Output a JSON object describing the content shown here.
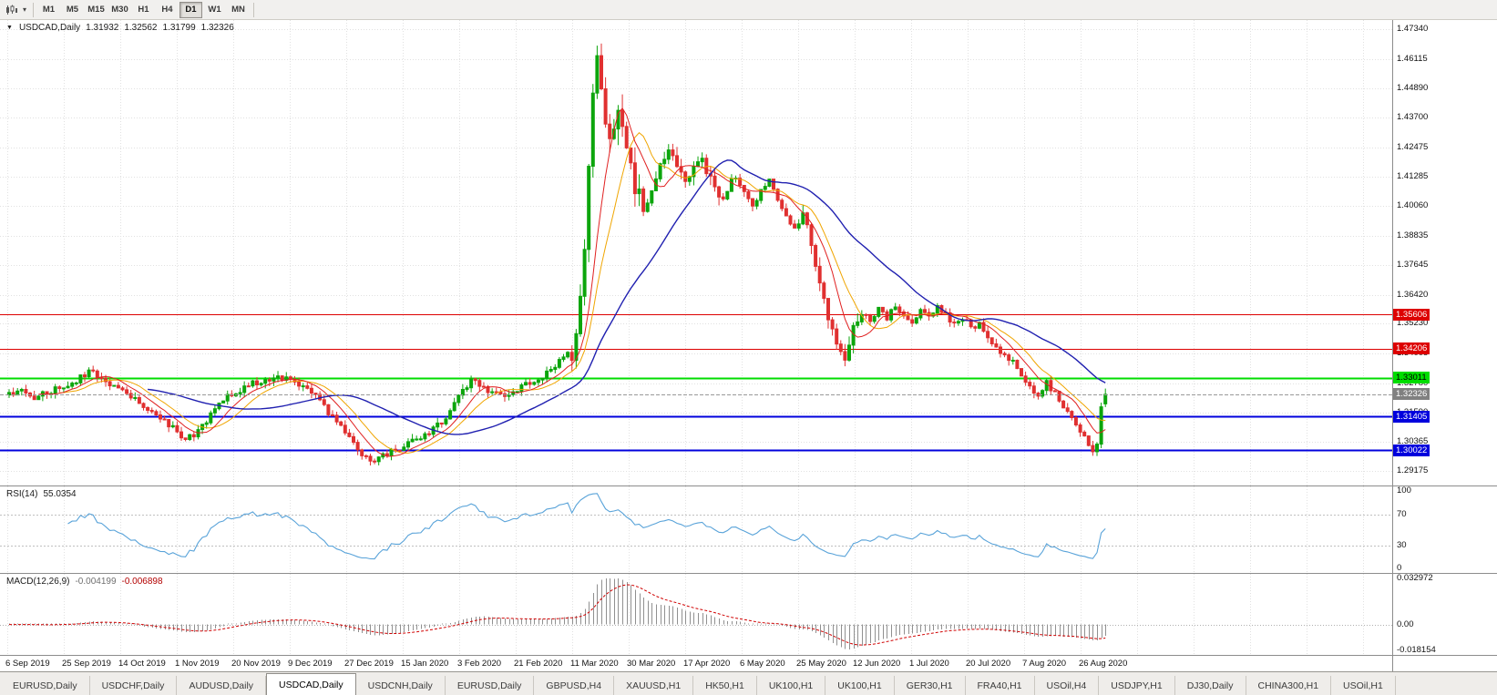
{
  "icons": {
    "collapse_triangle": "▼",
    "dropdown_caret": "▾"
  },
  "toolbar": {
    "timeframes": [
      "M1",
      "M5",
      "M15",
      "M30",
      "H1",
      "H4",
      "D1",
      "W1",
      "MN"
    ],
    "active_timeframe": "D1"
  },
  "chart": {
    "title": "USDCAD,Daily",
    "open": "1.31932",
    "high": "1.32562",
    "low": "1.31799",
    "close": "1.32326",
    "price_scale": [
      "1.47340",
      "1.46115",
      "1.44890",
      "1.43700",
      "1.42475",
      "1.41285",
      "1.40060",
      "1.38835",
      "1.37645",
      "1.36420",
      "1.35230",
      "1.34005",
      "1.32780",
      "1.31590",
      "1.30365",
      "1.29175"
    ],
    "price_max": 1.4734,
    "price_min": 1.29175,
    "current_price": {
      "value": 1.32326,
      "label": "1.32326",
      "bg": "#808080",
      "fg": "#ffffff"
    },
    "levels": [
      {
        "label": "1.35606",
        "value": 1.35606,
        "color": "#dd0000",
        "fg": "#ffffff",
        "thickness": 1
      },
      {
        "label": "1.34206",
        "value": 1.34206,
        "color": "#dd0000",
        "fg": "#ffffff",
        "thickness": 1
      },
      {
        "label": "1.33011",
        "value": 1.33011,
        "color": "#00dd00",
        "fg": "#000000",
        "thickness": 2
      },
      {
        "label": "1.31405",
        "value": 1.31405,
        "color": "#0000dd",
        "fg": "#ffffff",
        "thickness": 2
      },
      {
        "label": "1.30022",
        "value": 1.30022,
        "color": "#0000dd",
        "fg": "#ffffff",
        "thickness": 2
      }
    ],
    "colors": {
      "bull": "#0ca50c",
      "bear": "#e03030",
      "ma_fast": "#e02020",
      "ma_mid": "#f0a500",
      "ma_slow": "#2020b0",
      "grid": "#e1e1e1",
      "current_line": "#999999"
    }
  },
  "rsi": {
    "label": "RSI(14)",
    "value": "55.0354",
    "scale_labels": [
      "100",
      "70",
      "30",
      "0"
    ],
    "levels": [
      70,
      30
    ],
    "color": "#59a3d9"
  },
  "macd": {
    "label": "MACD(12,26,9)",
    "value_main": "-0.004199",
    "value_signal": "-0.006898",
    "scale_labels": [
      "0.032972",
      "0.00",
      "-0.018154"
    ],
    "scale_values": [
      0.032972,
      0,
      -0.018154
    ],
    "scale_max": 0.032972,
    "scale_min": -0.018154,
    "histogram_color": "#909090",
    "signal_color": "#d00000"
  },
  "date_axis": [
    "6 Sep 2019",
    "25 Sep 2019",
    "14 Oct 2019",
    "1 Nov 2019",
    "20 Nov 2019",
    "9 Dec 2019",
    "27 Dec 2019",
    "15 Jan 2020",
    "3 Feb 2020",
    "21 Feb 2020",
    "11 Mar 2020",
    "30 Mar 2020",
    "17 Apr 2020",
    "6 May 2020",
    "25 May 2020",
    "12 Jun 2020",
    "1 Jul 2020",
    "20 Jul 2020",
    "7 Aug 2020",
    "26 Aug 2020"
  ],
  "tabs": {
    "items": [
      "EURUSD,Daily",
      "USDCHF,Daily",
      "AUDUSD,Daily",
      "USDCAD,Daily",
      "USDCNH,Daily",
      "EURUSD,Daily",
      "GBPUSD,H4",
      "XAUUSD,H1",
      "HK50,H1",
      "UK100,H1",
      "UK100,H1",
      "GER30,H1",
      "FRA40,H1",
      "USOil,H4",
      "USDJPY,H1",
      "DJ30,Daily",
      "CHINA300,H1",
      "USOil,H1"
    ],
    "active_index": 3
  },
  "chart_data": {
    "type": "candlestick",
    "symbol": "USDCAD",
    "period": "Daily",
    "x_range": [
      "6 Sep 2019",
      "8 Sep 2020"
    ],
    "y_range": [
      1.29175,
      1.4734
    ],
    "candle_count": 262,
    "last_candle": {
      "open": 1.31932,
      "high": 1.32562,
      "low": 1.31799,
      "close": 1.32326
    },
    "horizontal_levels": [
      1.35606,
      1.34206,
      1.33011,
      1.31405,
      1.30022
    ],
    "indicators": [
      {
        "name": "SMA",
        "period": 8,
        "color": "#e02020"
      },
      {
        "name": "SMA",
        "period": 13,
        "color": "#f0a500"
      },
      {
        "name": "SMA",
        "period": 34,
        "color": "#2020b0"
      },
      {
        "name": "RSI",
        "period": 14,
        "last_value": 55.0354
      },
      {
        "name": "MACD",
        "fast": 12,
        "slow": 26,
        "signal": 9,
        "last_main": -0.004199,
        "last_signal": -0.006898
      }
    ],
    "close_keyframes": [
      [
        0,
        1.323
      ],
      [
        3,
        1.325
      ],
      [
        6,
        1.3218
      ],
      [
        9,
        1.324
      ],
      [
        13,
        1.3262
      ],
      [
        16,
        1.329
      ],
      [
        19,
        1.333
      ],
      [
        22,
        1.3305
      ],
      [
        25,
        1.3262
      ],
      [
        28,
        1.323
      ],
      [
        31,
        1.32
      ],
      [
        34,
        1.3165
      ],
      [
        38,
        1.311
      ],
      [
        42,
        1.3048
      ],
      [
        45,
        1.3075
      ],
      [
        48,
        1.315
      ],
      [
        52,
        1.3225
      ],
      [
        56,
        1.3262
      ],
      [
        60,
        1.329
      ],
      [
        64,
        1.3302
      ],
      [
        67,
        1.3288
      ],
      [
        71,
        1.3262
      ],
      [
        75,
        1.318
      ],
      [
        79,
        1.3105
      ],
      [
        83,
        1.3
      ],
      [
        86,
        1.2958
      ],
      [
        89,
        1.298
      ],
      [
        93,
        1.301
      ],
      [
        97,
        1.3052
      ],
      [
        101,
        1.309
      ],
      [
        104,
        1.3125
      ],
      [
        107,
        1.323
      ],
      [
        110,
        1.3288
      ],
      [
        114,
        1.3252
      ],
      [
        118,
        1.3228
      ],
      [
        122,
        1.3262
      ],
      [
        126,
        1.3292
      ],
      [
        129,
        1.334
      ],
      [
        132,
        1.3385
      ],
      [
        134,
        1.341
      ],
      [
        136,
        1.36
      ],
      [
        137,
        1.385
      ],
      [
        138,
        1.415
      ],
      [
        139,
        1.448
      ],
      [
        140,
        1.464
      ],
      [
        141,
        1.445
      ],
      [
        142,
        1.438
      ],
      [
        143,
        1.426
      ],
      [
        144,
        1.433
      ],
      [
        145,
        1.439
      ],
      [
        146,
        1.43
      ],
      [
        147,
        1.421
      ],
      [
        149,
        1.409
      ],
      [
        151,
        1.3995
      ],
      [
        153,
        1.408
      ],
      [
        155,
        1.419
      ],
      [
        157,
        1.4245
      ],
      [
        159,
        1.416
      ],
      [
        161,
        1.41
      ],
      [
        163,
        1.416
      ],
      [
        165,
        1.42
      ],
      [
        167,
        1.411
      ],
      [
        169,
        1.403
      ],
      [
        171,
        1.408
      ],
      [
        173,
        1.413
      ],
      [
        175,
        1.406
      ],
      [
        177,
        1.4
      ],
      [
        179,
        1.407
      ],
      [
        181,
        1.411
      ],
      [
        183,
        1.404
      ],
      [
        185,
        1.397
      ],
      [
        187,
        1.392
      ],
      [
        189,
        1.399
      ],
      [
        191,
        1.384
      ],
      [
        193,
        1.37
      ],
      [
        195,
        1.354
      ],
      [
        197,
        1.344
      ],
      [
        199,
        1.338
      ],
      [
        201,
        1.35
      ],
      [
        203,
        1.356
      ],
      [
        205,
        1.353
      ],
      [
        207,
        1.358
      ],
      [
        209,
        1.3545
      ],
      [
        211,
        1.36
      ],
      [
        213,
        1.3565
      ],
      [
        215,
        1.3535
      ],
      [
        217,
        1.358
      ],
      [
        219,
        1.3555
      ],
      [
        221,
        1.3595
      ],
      [
        223,
        1.3555
      ],
      [
        225,
        1.3515
      ],
      [
        227,
        1.355
      ],
      [
        229,
        1.3505
      ],
      [
        231,
        1.3525
      ],
      [
        233,
        1.347
      ],
      [
        235,
        1.3425
      ],
      [
        237,
        1.3395
      ],
      [
        239,
        1.3365
      ],
      [
        241,
        1.3315
      ],
      [
        243,
        1.326
      ],
      [
        245,
        1.323
      ],
      [
        247,
        1.3285
      ],
      [
        249,
        1.3235
      ],
      [
        251,
        1.318
      ],
      [
        253,
        1.313
      ],
      [
        255,
        1.308
      ],
      [
        257,
        1.303
      ],
      [
        258,
        1.2998
      ],
      [
        259,
        1.3025
      ],
      [
        260,
        1.319
      ],
      [
        261,
        1.32326
      ]
    ]
  }
}
